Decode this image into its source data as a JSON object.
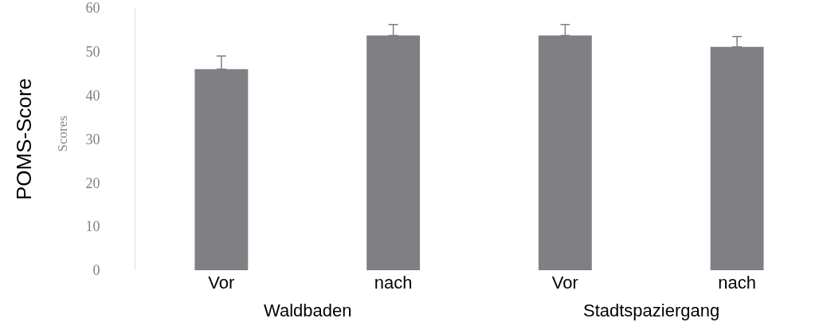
{
  "chart_data": {
    "type": "bar",
    "categories": [
      "Vor",
      "nach",
      "Vor",
      "nach"
    ],
    "values": [
      46.0,
      53.7,
      53.7,
      51.1
    ],
    "errors": [
      [
        46.0,
        49.0
      ],
      [
        53.7,
        56.2
      ],
      [
        53.7,
        56.2
      ],
      [
        51.1,
        53.5
      ]
    ],
    "color": "#808084",
    "ylabel": "POMS-Score",
    "annotations": [
      "Waldbaden",
      "Stadtspaziergang",
      "Scores"
    ],
    "ylim": [
      0,
      60
    ],
    "yticks": [
      0,
      10,
      20,
      30,
      40,
      50,
      60
    ],
    "legend": false
  }
}
